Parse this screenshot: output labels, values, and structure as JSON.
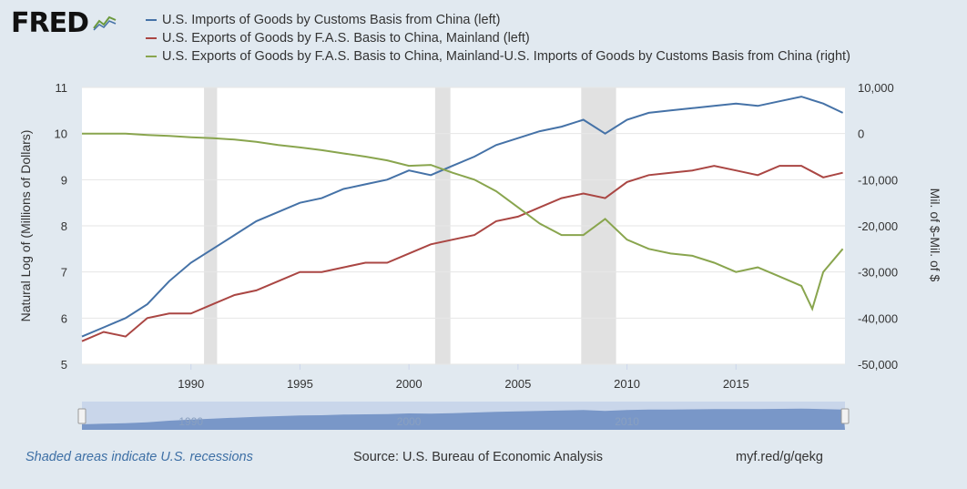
{
  "logo": {
    "text": "FRED",
    "icon": "chart-line-icon"
  },
  "footer": {
    "recession_note": "Shaded areas indicate U.S. recessions",
    "source": "Source: U.S. Bureau of Economic Analysis",
    "link": "myf.red/g/qekg"
  },
  "colors": {
    "background": "#e1e9f0",
    "plot": "#ffffff",
    "recession": "#e1e1e1",
    "imports": "#4572a7",
    "exports": "#aa4643",
    "balance": "#89a54e",
    "navigator": "#6b8cc2"
  },
  "chart_data": {
    "type": "line",
    "x_range": [
      1985,
      2020
    ],
    "xticks": [
      1990,
      1995,
      2000,
      2005,
      2010,
      2015
    ],
    "left_axis": {
      "label": "Natural Log of (Millions of Dollars)",
      "range": [
        5,
        11
      ],
      "ticks": [
        5,
        6,
        7,
        8,
        9,
        10,
        11
      ]
    },
    "right_axis": {
      "label": "Mil. of $-Mil. of $",
      "range": [
        -50000,
        10000
      ],
      "ticks": [
        "-50,000",
        "-40,000",
        "-30,000",
        "-20,000",
        "-10,000",
        "0",
        "10,000"
      ]
    },
    "recessions": [
      [
        1990.6,
        1991.2
      ],
      [
        2001.2,
        2001.9
      ],
      [
        2007.9,
        2009.5
      ]
    ],
    "navigator_labels": [
      "1990",
      "2000",
      "2010"
    ],
    "series": [
      {
        "name": "U.S. Imports of Goods by Customs Basis from China (left)",
        "axis": "left",
        "x": [
          1985,
          1986,
          1987,
          1988,
          1989,
          1990,
          1991,
          1992,
          1993,
          1994,
          1995,
          1996,
          1997,
          1998,
          1999,
          2000,
          2001,
          2002,
          2003,
          2004,
          2005,
          2006,
          2007,
          2008,
          2009,
          2010,
          2011,
          2012,
          2013,
          2014,
          2015,
          2016,
          2017,
          2018,
          2019,
          2019.9
        ],
        "y": [
          5.6,
          5.8,
          6.0,
          6.3,
          6.8,
          7.2,
          7.5,
          7.8,
          8.1,
          8.3,
          8.5,
          8.6,
          8.8,
          8.9,
          9.0,
          9.2,
          9.1,
          9.3,
          9.5,
          9.75,
          9.9,
          10.05,
          10.15,
          10.3,
          10.0,
          10.3,
          10.45,
          10.5,
          10.55,
          10.6,
          10.65,
          10.6,
          10.7,
          10.8,
          10.65,
          10.45
        ]
      },
      {
        "name": "U.S. Exports of Goods by F.A.S. Basis to China, Mainland (left)",
        "axis": "left",
        "x": [
          1985,
          1986,
          1987,
          1988,
          1989,
          1990,
          1991,
          1992,
          1993,
          1994,
          1995,
          1996,
          1997,
          1998,
          1999,
          2000,
          2001,
          2002,
          2003,
          2004,
          2005,
          2006,
          2007,
          2008,
          2009,
          2010,
          2011,
          2012,
          2013,
          2014,
          2015,
          2016,
          2017,
          2018,
          2019,
          2019.9
        ],
        "y": [
          5.5,
          5.7,
          5.6,
          6.0,
          6.1,
          6.1,
          6.3,
          6.5,
          6.6,
          6.8,
          7.0,
          7.0,
          7.1,
          7.2,
          7.2,
          7.4,
          7.6,
          7.7,
          7.8,
          8.1,
          8.2,
          8.4,
          8.6,
          8.7,
          8.6,
          8.95,
          9.1,
          9.15,
          9.2,
          9.3,
          9.2,
          9.1,
          9.3,
          9.3,
          9.05,
          9.15
        ]
      },
      {
        "name": "U.S. Exports of Goods by F.A.S. Basis to China, Mainland-U.S. Imports of Goods by Customs Basis from China (right)",
        "axis": "right",
        "x": [
          1985,
          1986,
          1987,
          1988,
          1989,
          1990,
          1991,
          1992,
          1993,
          1994,
          1995,
          1996,
          1997,
          1998,
          1999,
          2000,
          2001,
          2002,
          2003,
          2004,
          2005,
          2006,
          2007,
          2008,
          2009,
          2010,
          2011,
          2012,
          2013,
          2014,
          2015,
          2016,
          2017,
          2018,
          2018.5,
          2019,
          2019.9
        ],
        "y": [
          0,
          0,
          0,
          -300,
          -500,
          -800,
          -1000,
          -1300,
          -1800,
          -2500,
          -3000,
          -3600,
          -4300,
          -5000,
          -5800,
          -7000,
          -6800,
          -8500,
          -10000,
          -12500,
          -16000,
          -19500,
          -22000,
          -22000,
          -18500,
          -23000,
          -25000,
          -26000,
          -26500,
          -28000,
          -30000,
          -29000,
          -31000,
          -33000,
          -38000,
          -30000,
          -25000
        ]
      }
    ]
  }
}
